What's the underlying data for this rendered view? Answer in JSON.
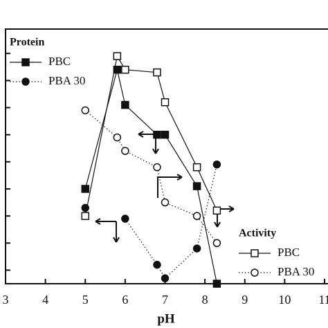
{
  "chart_data": {
    "type": "line",
    "x_label": "pH",
    "legend_titles": [
      "Protein",
      "Activity"
    ],
    "xlim": [
      3,
      11
    ],
    "xticks": [
      3,
      4,
      5,
      6,
      7,
      8,
      9,
      10,
      11
    ],
    "ylim": [
      0.5,
      9.9
    ],
    "yticks": [
      1,
      2,
      3,
      4,
      5,
      6,
      7,
      8,
      9
    ],
    "x": [
      5,
      5.8,
      6,
      6.8,
      7,
      7.8,
      8.3
    ],
    "series": [
      {
        "name": "PBC",
        "color": "#111111",
        "marker": "square",
        "filled": true,
        "dash": "solid",
        "values": [
          4.0,
          8.4,
          7.1,
          6.0,
          6.0,
          4.1,
          0.5
        ]
      },
      {
        "name": "PBA 30",
        "color": "#111111",
        "marker": "circle",
        "filled": true,
        "dash": "dotted",
        "values": [
          3.3,
          null,
          2.9,
          1.2,
          0.7,
          1.8,
          4.9
        ]
      },
      {
        "name": "PBC",
        "color": "#111111",
        "marker": "square",
        "filled": false,
        "dash": "solid",
        "values": [
          3.0,
          8.9,
          8.4,
          8.3,
          7.2,
          4.8,
          3.2
        ]
      },
      {
        "name": "PBA 30",
        "color": "#111111",
        "marker": "circle",
        "filled": false,
        "dash": "dotted",
        "values": [
          6.9,
          5.9,
          5.4,
          4.8,
          3.5,
          3.0,
          2.0
        ]
      }
    ]
  }
}
